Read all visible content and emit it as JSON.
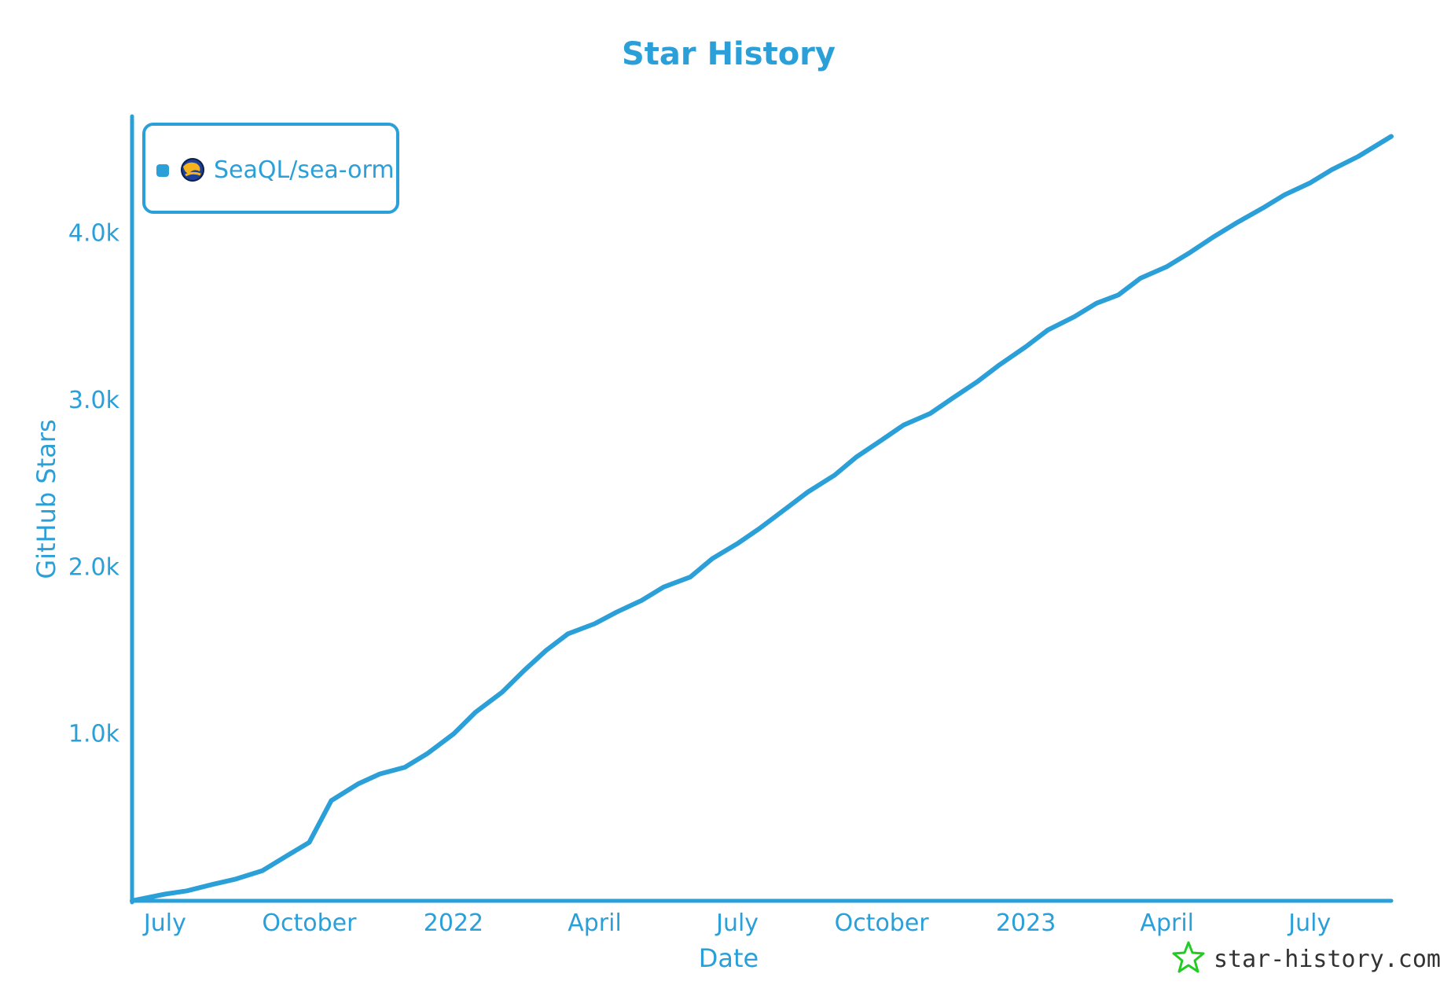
{
  "colors": {
    "accent": "#2a9fd8",
    "text": "#2a9fd8",
    "watermark_text": "#333333",
    "watermark_star": "#22cc22",
    "background": "#ffffff"
  },
  "watermark": {
    "icon": "star-outline-icon",
    "text": "star-history.com"
  },
  "chart_data": {
    "type": "line",
    "title": "Star History",
    "xlabel": "Date",
    "ylabel": "GitHub Stars",
    "grid": false,
    "legend": {
      "placement": "top-left",
      "entries": [
        {
          "name": "SeaQL/sea-orm",
          "icon": "sea-orm-logo-icon"
        }
      ]
    },
    "x_ticks": [
      "July",
      "October",
      "2022",
      "April",
      "July",
      "October",
      "2023",
      "April",
      "July"
    ],
    "x_tick_dates": [
      "2021-07-01",
      "2021-10-01",
      "2022-01-01",
      "2022-04-01",
      "2022-07-01",
      "2022-10-01",
      "2023-01-01",
      "2023-04-01",
      "2023-07-01"
    ],
    "xlim": [
      "2021-06-10",
      "2023-08-22"
    ],
    "y_ticks": [
      "1.0k",
      "2.0k",
      "3.0k",
      "4.0k"
    ],
    "y_tick_values": [
      1000,
      2000,
      3000,
      4000
    ],
    "ylim": [
      0,
      4700
    ],
    "series": [
      {
        "name": "SeaQL/sea-orm",
        "x": [
          "2021-06-10",
          "2021-07-01",
          "2021-07-15",
          "2021-08-01",
          "2021-08-15",
          "2021-09-01",
          "2021-09-15",
          "2021-10-01",
          "2021-10-15",
          "2021-11-01",
          "2021-11-15",
          "2021-12-01",
          "2021-12-15",
          "2022-01-01",
          "2022-01-15",
          "2022-02-01",
          "2022-02-15",
          "2022-03-01",
          "2022-03-15",
          "2022-04-01",
          "2022-04-15",
          "2022-05-01",
          "2022-05-15",
          "2022-06-01",
          "2022-06-15",
          "2022-07-01",
          "2022-07-15",
          "2022-08-01",
          "2022-08-15",
          "2022-09-01",
          "2022-09-15",
          "2022-10-01",
          "2022-10-15",
          "2022-11-01",
          "2022-11-15",
          "2022-12-01",
          "2022-12-15",
          "2023-01-01",
          "2023-01-15",
          "2023-02-01",
          "2023-02-15",
          "2023-03-01",
          "2023-03-15",
          "2023-04-01",
          "2023-04-15",
          "2023-05-01",
          "2023-05-15",
          "2023-06-01",
          "2023-06-15",
          "2023-07-01",
          "2023-07-15",
          "2023-08-01",
          "2023-08-22"
        ],
        "values": [
          0,
          40,
          60,
          100,
          130,
          180,
          260,
          350,
          600,
          700,
          760,
          800,
          880,
          1000,
          1130,
          1250,
          1380,
          1500,
          1600,
          1660,
          1730,
          1800,
          1880,
          1940,
          2050,
          2140,
          2230,
          2350,
          2450,
          2550,
          2660,
          2760,
          2850,
          2920,
          3010,
          3110,
          3210,
          3320,
          3420,
          3500,
          3580,
          3630,
          3730,
          3800,
          3880,
          3980,
          4060,
          4150,
          4230,
          4300,
          4380,
          4460,
          4580
        ]
      }
    ]
  }
}
